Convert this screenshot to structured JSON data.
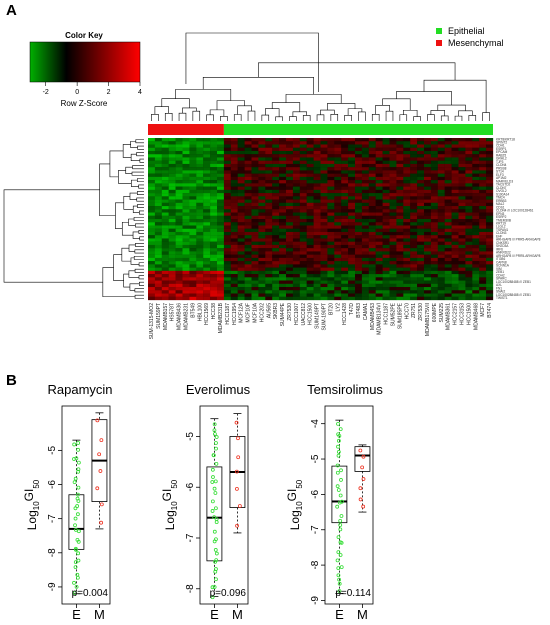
{
  "panel_a": {
    "label": "A",
    "color_key": {
      "title": "Color Key",
      "ticks": [
        "-2",
        "0",
        "2",
        "4"
      ],
      "xlabel": "Row Z-Score",
      "low_color": "#00b000",
      "mid_color": "#000000",
      "high_color": "#ff0000"
    },
    "legend": [
      {
        "label": "Epithelial",
        "color": "#22dd22"
      },
      {
        "label": "Mesenchymal",
        "color": "#ee1111"
      }
    ],
    "samples": [
      "SUM-1315-MO2",
      "SUM159PT",
      "MDAMB157",
      "HS578T",
      "MDAMB436",
      "MDAMB231",
      "BT549",
      "HBL100",
      "HCC1569",
      "HCC38",
      "MDAMB231B",
      "HCC1187",
      "HCC1954",
      "MCF12A",
      "MCF10F",
      "MCF10A",
      "HCC202",
      "AU565",
      "SKBR3",
      "SUM44PE",
      "ZR7530",
      "HCC1007",
      "UACC812",
      "HCC1500",
      "SUM149PT",
      "SUM-190PT",
      "BT20",
      "LY2",
      "HCC1428",
      "T47D",
      "BT483",
      "CAMA1",
      "MDAMB453",
      "MDAMB134VI",
      "HCC1187",
      "SUM52PE",
      "SUM185PE",
      "HCC70",
      "ZR751",
      "ZR7530",
      "MDAMB175VII",
      "600MPE",
      "SUM225",
      "MDAMB361",
      "HCC2157",
      "HCC3153",
      "HCC1500",
      "MDAMB468",
      "MCF7",
      "BT474"
    ],
    "genes": [
      "KRT8/KRT18",
      "SPINT2",
      "CDH1",
      "ESRP1",
      "EPCAM",
      "RAB25",
      "GRHL2",
      "TJP3",
      "CLDN4",
      "PRSS8",
      "ST14",
      "ELF3",
      "AP1M2",
      "MARVELD3",
      "TACSTD2",
      "CLDN7",
      "OVOL2",
      "S100A14",
      "TMC4",
      "ERBB3",
      "MAL2",
      "CDS1",
      "CLDN4 /// LOC100128461",
      "EPN3",
      "ESRP2",
      "TMEM30B",
      "KRT19",
      "LLGL2",
      "TSPAN1",
      "CLDN3",
      "EHF",
      "ARHGAP8 /// PRR5-ARHGAP8",
      "CNKSR1",
      "SH2D3A",
      "IRF6",
      "ANKRD22",
      "ARHGAP8 /// PRR5-ARHGAP8",
      "ITGB6",
      "CAPN8",
      "SCNN1A",
      "VIM",
      "ZEB1",
      "CDH2",
      "SPARC",
      "LOC100288488 /// ZEB1",
      "AXL",
      "FN1",
      "SNAI2",
      "LOC100288488 /// ZEB1",
      "TWIST1"
    ]
  },
  "panel_b": {
    "label": "B",
    "chart_data": [
      {
        "type": "box",
        "title": "Rapamycin",
        "ylabel": "Log10GI50",
        "categories": [
          "E",
          "M"
        ],
        "ylim": [
          -9.5,
          -3.7
        ],
        "yticks": [
          -9,
          -8,
          -7,
          -6,
          -5
        ],
        "boxes": [
          {
            "name": "E",
            "min": -9.2,
            "q1": -7.9,
            "median": -7.3,
            "q3": -6.3,
            "max": -4.7
          },
          {
            "name": "M",
            "min": -7.3,
            "q1": -6.5,
            "median": -5.3,
            "q3": -4.1,
            "max": -3.9
          }
        ],
        "p_value": "p=0.004"
      },
      {
        "type": "box",
        "title": "Everolimus",
        "ylabel": "Log10GI50",
        "categories": [
          "E",
          "M"
        ],
        "ylim": [
          -8.3,
          -4.4
        ],
        "yticks": [
          -8,
          -7,
          -6,
          -5
        ],
        "boxes": [
          {
            "name": "E",
            "min": -8.15,
            "q1": -7.45,
            "median": -6.6,
            "q3": -5.6,
            "max": -4.65
          },
          {
            "name": "M",
            "min": -6.9,
            "q1": -6.4,
            "median": -5.7,
            "q3": -5.0,
            "max": -4.55
          }
        ],
        "p_value": "p=0.096"
      },
      {
        "type": "box",
        "title": "Temsirolimus",
        "ylabel": "Log10GI50",
        "categories": [
          "E",
          "M"
        ],
        "ylim": [
          -9.1,
          -3.5
        ],
        "yticks": [
          -9,
          -8,
          -7,
          -6,
          -5,
          -4
        ],
        "boxes": [
          {
            "name": "E",
            "min": -8.8,
            "q1": -6.8,
            "median": -6.2,
            "q3": -5.2,
            "max": -3.9
          },
          {
            "name": "M",
            "min": -6.5,
            "q1": -5.35,
            "median": -4.9,
            "q3": -4.65,
            "max": -4.6
          }
        ],
        "p_value": "p=0.114"
      }
    ]
  }
}
